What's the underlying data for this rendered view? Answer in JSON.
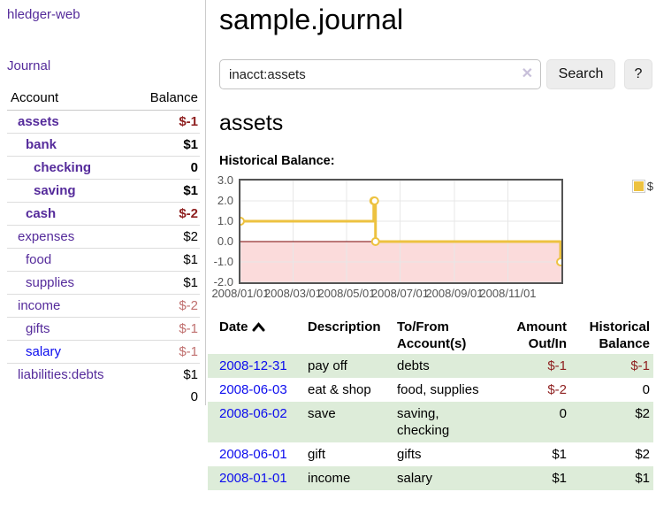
{
  "app": {
    "title": "hledger-web"
  },
  "colors": {
    "link_blue": "#0c0cee",
    "link_visited_purple": "#552b9b",
    "negative_strong": "#8e1f1f",
    "negative_soft": "#c0706f",
    "row_stripe_green": "#ddecd9",
    "chart_line": "#EDC240",
    "chart_negative_region": "#fbdbdb",
    "chart_zero_line": "#7a0000",
    "chart_border": "#545454"
  },
  "sidebar": {
    "nav": {
      "journal_label": "Journal"
    },
    "accounts_table": {
      "headers": {
        "account": "Account",
        "balance": "Balance"
      },
      "rows": [
        {
          "account": "assets",
          "balance": "$-1",
          "depth": 1,
          "bold": true,
          "link": "purple",
          "balance_class": "neg-strong"
        },
        {
          "account": "bank",
          "balance": "$1",
          "depth": 2,
          "bold": true,
          "link": "purple",
          "balance_class": ""
        },
        {
          "account": "checking",
          "balance": "0",
          "depth": 3,
          "bold": true,
          "link": "purple",
          "balance_class": ""
        },
        {
          "account": "saving",
          "balance": "$1",
          "depth": 3,
          "bold": true,
          "link": "purple",
          "balance_class": ""
        },
        {
          "account": "cash",
          "balance": "$-2",
          "depth": 2,
          "bold": true,
          "link": "purple",
          "balance_class": "neg-strong"
        },
        {
          "account": "expenses",
          "balance": "$2",
          "depth": 1,
          "bold": false,
          "link": "purple",
          "balance_class": ""
        },
        {
          "account": "food",
          "balance": "$1",
          "depth": 2,
          "bold": false,
          "link": "purple",
          "balance_class": ""
        },
        {
          "account": "supplies",
          "balance": "$1",
          "depth": 2,
          "bold": false,
          "link": "purple",
          "balance_class": ""
        },
        {
          "account": "income",
          "balance": "$-2",
          "depth": 1,
          "bold": false,
          "link": "purple",
          "balance_class": "neg-soft"
        },
        {
          "account": "gifts",
          "balance": "$-1",
          "depth": 2,
          "bold": false,
          "link": "purple",
          "balance_class": "neg-soft"
        },
        {
          "account": "salary",
          "balance": "$-1",
          "depth": 2,
          "bold": false,
          "link": "blue",
          "balance_class": "neg-soft"
        },
        {
          "account": "liabilities:debts",
          "balance": "$1",
          "depth": 1,
          "bold": false,
          "link": "purple",
          "balance_class": ""
        }
      ],
      "total": "0"
    }
  },
  "main": {
    "title": "sample.journal",
    "search": {
      "value": "inacct:assets",
      "clear_icon": "✕",
      "button_label": "Search",
      "help_label": "?"
    },
    "account_heading": "assets",
    "chart_heading": "Historical Balance:"
  },
  "chart_data": {
    "type": "line",
    "step": true,
    "title": "Historical Balance:",
    "series": [
      {
        "name": "$",
        "color": "#EDC240",
        "points": [
          [
            "2008-01-01",
            1
          ],
          [
            "2008-06-01",
            2
          ],
          [
            "2008-06-02",
            2
          ],
          [
            "2008-06-03",
            0
          ],
          [
            "2008-12-31",
            -1
          ]
        ]
      }
    ],
    "ylim": [
      -2,
      3
    ],
    "yticks": [
      "3.0",
      "2.0",
      "1.0",
      "0.0",
      "-1.0",
      "-2.0"
    ],
    "ytick_values": [
      3,
      2,
      1,
      0,
      -1,
      -2
    ],
    "xticks": [
      "2008/01/01",
      "2008/03/01",
      "2008/05/01",
      "2008/07/01",
      "2008/09/01",
      "2008/11/01"
    ],
    "xtick_values": [
      "2008-01-01",
      "2008-03-01",
      "2008-05-01",
      "2008-07-01",
      "2008-09-01",
      "2008-11-01"
    ],
    "xrange": [
      "2008-01-01",
      "2009-01-01"
    ],
    "grid": true,
    "legend": [
      {
        "label": "$",
        "color": "#EDC240"
      }
    ],
    "legend_position": "top-right",
    "negative_region": {
      "from": 0,
      "to": -2,
      "color": "#fbdbdb"
    },
    "zero_line_color": "#7a0000"
  },
  "register_table": {
    "headers": [
      "Date",
      "Description",
      "To/From Account(s)",
      "Amount Out/In",
      "Historical Balance"
    ],
    "sort_icon": "chevron-up",
    "rows": [
      {
        "date": "2008-12-31",
        "description": "pay off",
        "accounts": "debts",
        "amount": "$-1",
        "amount_negative": true,
        "balance": "$-1",
        "balance_negative": true
      },
      {
        "date": "2008-06-03",
        "description": "eat & shop",
        "accounts": "food, supplies",
        "amount": "$-2",
        "amount_negative": true,
        "balance": "0",
        "balance_negative": false
      },
      {
        "date": "2008-06-02",
        "description": "save",
        "accounts": "saving, checking",
        "amount": "0",
        "amount_negative": false,
        "balance": "$2",
        "balance_negative": false
      },
      {
        "date": "2008-06-01",
        "description": "gift",
        "accounts": "gifts",
        "amount": "$1",
        "amount_negative": false,
        "balance": "$2",
        "balance_negative": false
      },
      {
        "date": "2008-01-01",
        "description": "income",
        "accounts": "salary",
        "amount": "$1",
        "amount_negative": false,
        "balance": "$1",
        "balance_negative": false
      }
    ]
  }
}
